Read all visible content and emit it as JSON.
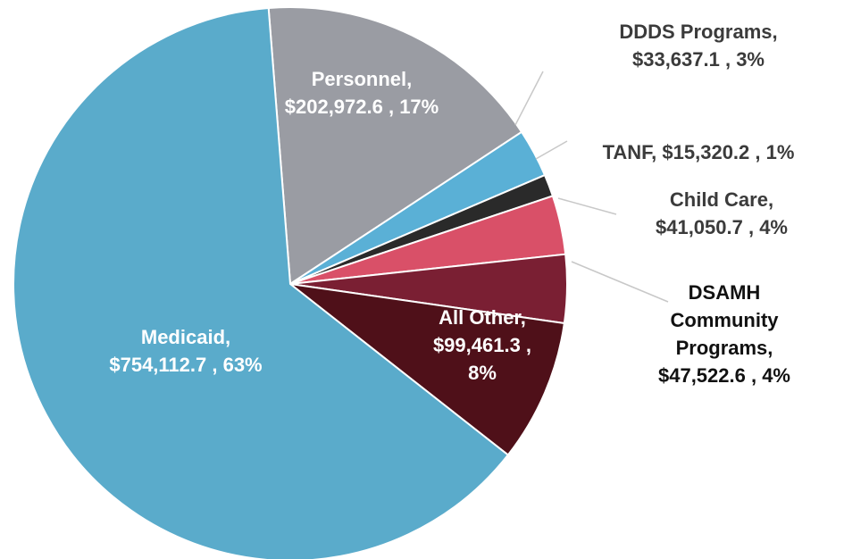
{
  "chart_data": {
    "type": "pie",
    "title": "",
    "start_angle_deg": -94.5,
    "slices": [
      {
        "name": "Personnel",
        "value": 202972.6,
        "value_text": "$202,972.6",
        "percent_text": "17%",
        "color": "#9a9ca3",
        "label_lines": [
          "Personnel,",
          "$202,972.6 , 17%"
        ]
      },
      {
        "name": "DDDS Programs",
        "value": 33637.1,
        "value_text": "$33,637.1",
        "percent_text": "3%",
        "color": "#5ab0d6",
        "label_lines": [
          "DDDS Programs,",
          "$33,637.1 , 3%"
        ]
      },
      {
        "name": "TANF",
        "value": 15320.2,
        "value_text": "$15,320.2",
        "percent_text": "1%",
        "color": "#2a2a2a",
        "label_lines": [
          "TANF,  $15,320.2 , 1%"
        ]
      },
      {
        "name": "Child Care",
        "value": 41050.7,
        "value_text": "$41,050.7",
        "percent_text": "4%",
        "color": "#d95068",
        "label_lines": [
          "Child Care,",
          "$41,050.7 , 4%"
        ]
      },
      {
        "name": "DSAMH Community Programs",
        "value": 47522.6,
        "value_text": "$47,522.6",
        "percent_text": "4%",
        "color": "#7a1f33",
        "label_lines": [
          "DSAMH",
          "Community",
          "Programs,",
          "$47,522.6 , 4%"
        ]
      },
      {
        "name": "All Other",
        "value": 99461.3,
        "value_text": "$99,461.3",
        "percent_text": "8%",
        "color": "#4f1019",
        "label_lines": [
          "All Other,",
          "$99,461.3 ,",
          "8%"
        ]
      },
      {
        "name": "Medicaid",
        "value": 754112.7,
        "value_text": "$754,112.7",
        "percent_text": "63%",
        "color": "#5aabcb",
        "label_lines": [
          "Medicaid,",
          "$754,112.7 , 63%"
        ]
      }
    ]
  }
}
